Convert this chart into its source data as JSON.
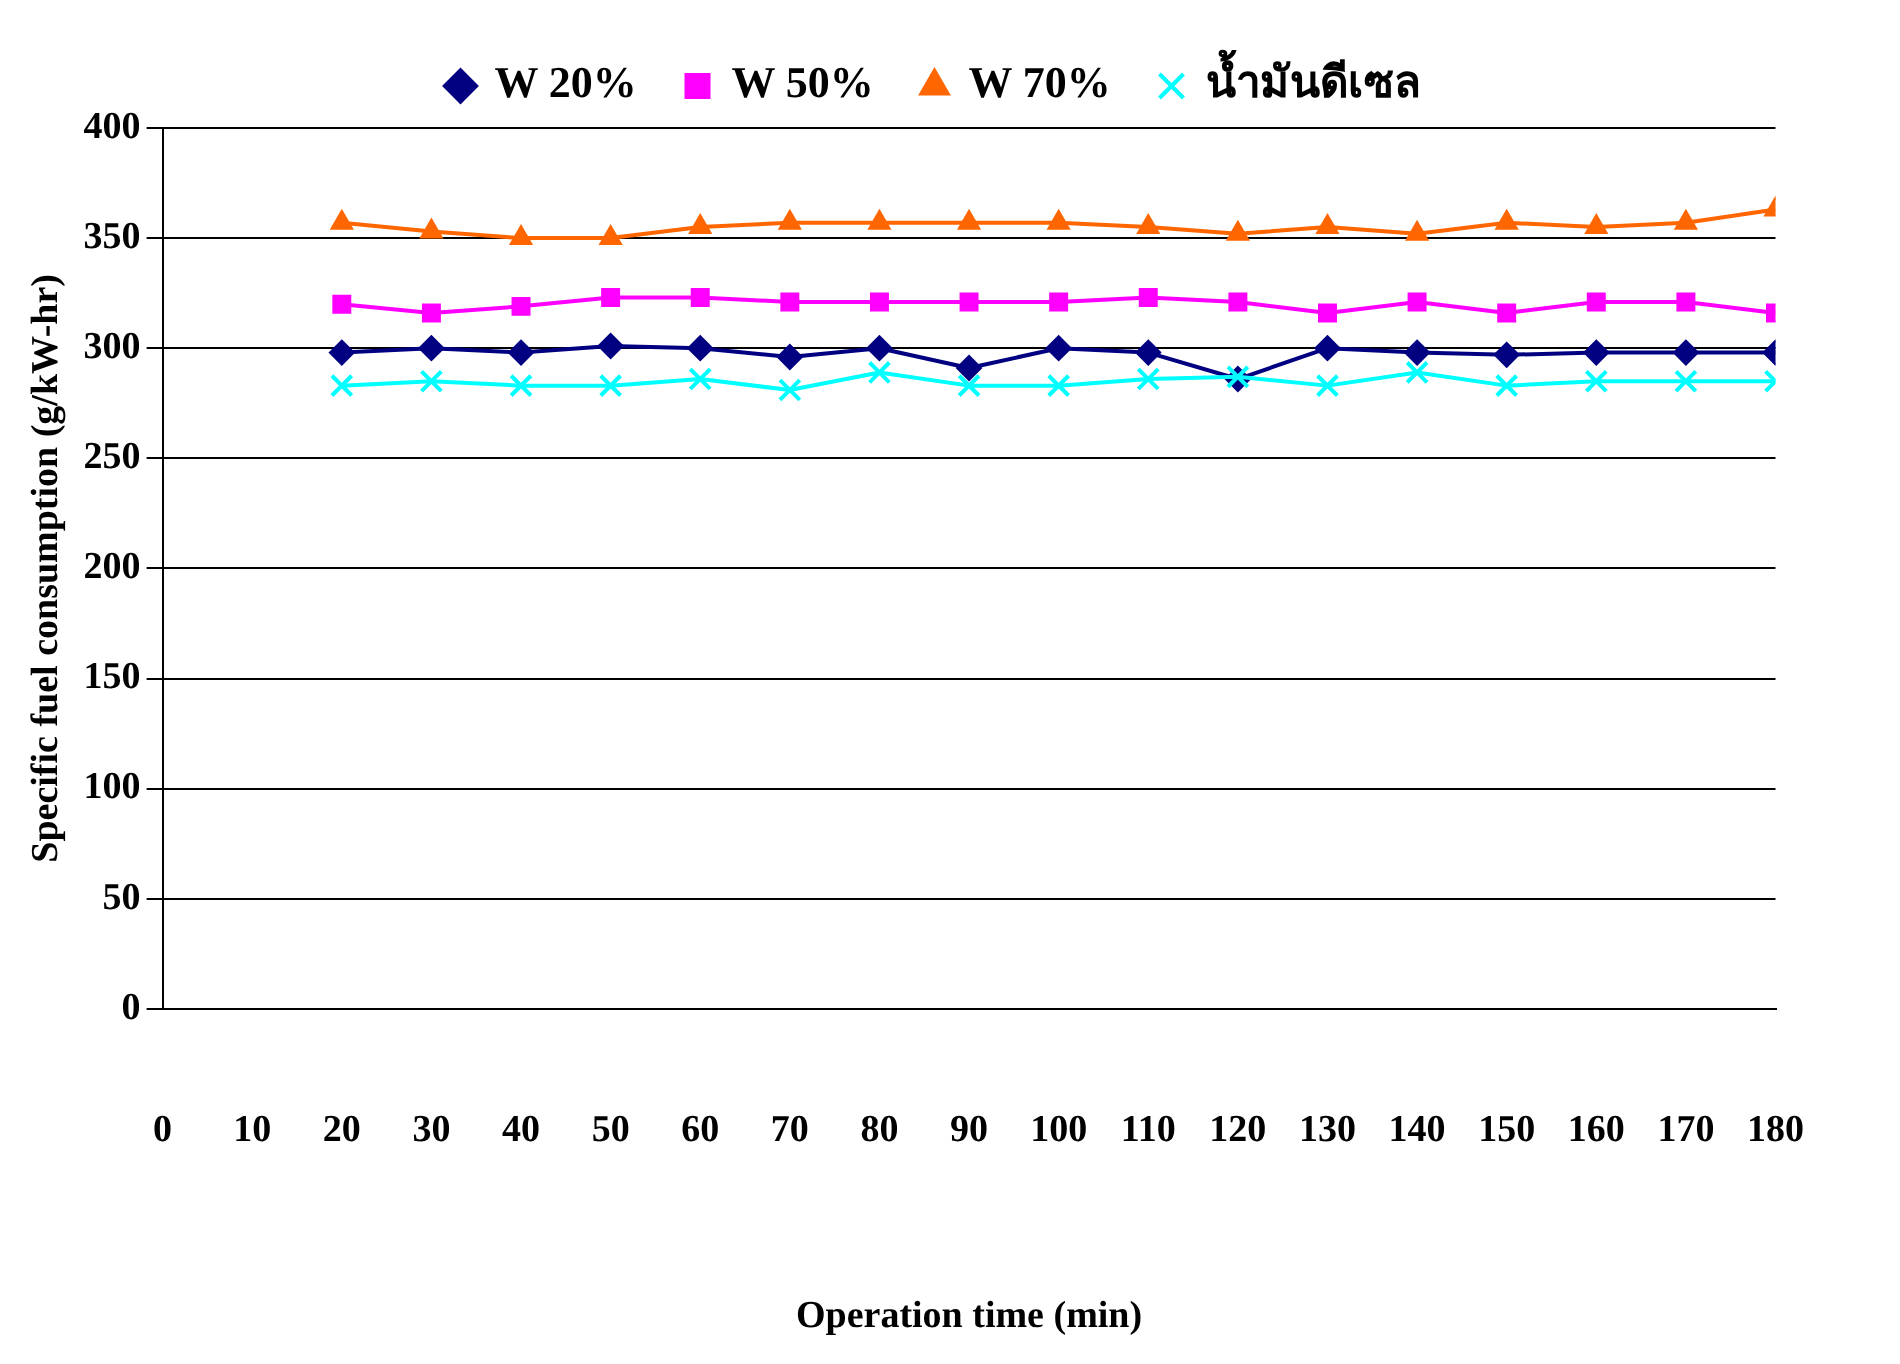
{
  "chart_data": {
    "type": "line",
    "xlabel": "Operation time (min)",
    "ylabel": "Specific fuel consumption (g/kW-hr)",
    "x": [
      20,
      30,
      40,
      50,
      60,
      70,
      80,
      90,
      100,
      110,
      120,
      130,
      140,
      150,
      160,
      170,
      180
    ],
    "series": [
      {
        "name": "W 20%",
        "color": "#000080",
        "marker": "diamond",
        "values": [
          298,
          300,
          298,
          301,
          300,
          296,
          300,
          291,
          300,
          298,
          286,
          300,
          298,
          297,
          298,
          298,
          298
        ]
      },
      {
        "name": "W 50%",
        "color": "#ff00ff",
        "marker": "square",
        "values": [
          320,
          316,
          319,
          323,
          323,
          321,
          321,
          321,
          321,
          323,
          321,
          316,
          321,
          316,
          321,
          321,
          316
        ]
      },
      {
        "name": "W 70%",
        "color": "#ff6600",
        "marker": "triangle",
        "values": [
          357,
          353,
          350,
          350,
          355,
          357,
          357,
          357,
          357,
          355,
          352,
          355,
          352,
          357,
          355,
          357,
          363
        ]
      },
      {
        "name": "น้ำมันดีเซล",
        "color": "#00ffff",
        "marker": "cross",
        "values": [
          283,
          285,
          283,
          283,
          286,
          281,
          289,
          283,
          283,
          286,
          287,
          283,
          289,
          283,
          285,
          285,
          285
        ]
      }
    ],
    "xlim": [
      0,
      180
    ],
    "xticks": [
      0,
      10,
      20,
      30,
      40,
      50,
      60,
      70,
      80,
      90,
      100,
      110,
      120,
      130,
      140,
      150,
      160,
      170,
      180
    ],
    "ylim": [
      0,
      400
    ],
    "yticks": [
      0,
      50,
      100,
      150,
      200,
      250,
      300,
      350,
      400
    ],
    "grid": "y",
    "legend": "top",
    "line_style": "solid"
  }
}
